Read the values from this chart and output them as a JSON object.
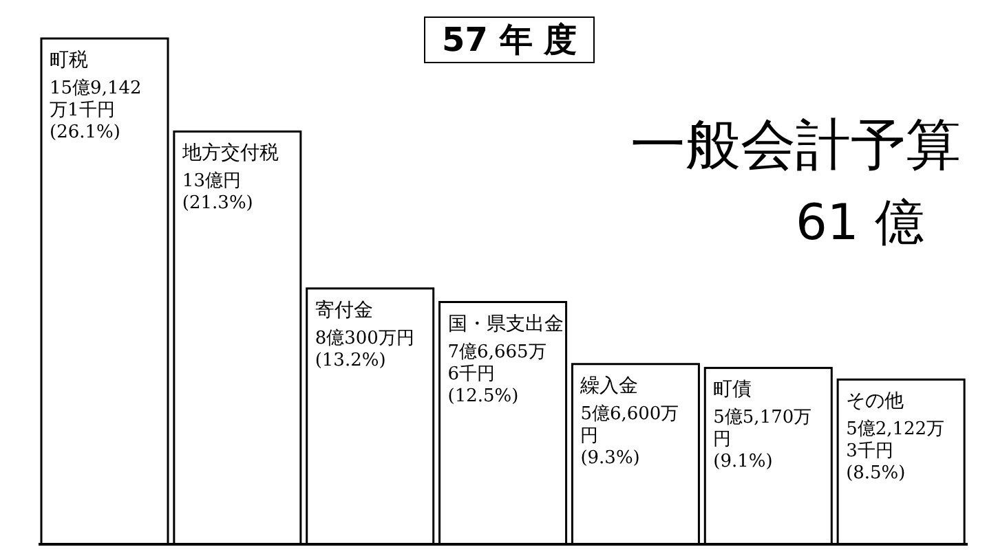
{
  "chart_data": {
    "type": "bar",
    "title": "57 年 度",
    "subtitle": "一般会計予算",
    "annotations": [
      "61 億"
    ],
    "categories": [
      "町税",
      "地方交付税",
      "寄付金",
      "国・県支出金",
      "繰入金",
      "町債",
      "その他"
    ],
    "values": [
      26.1,
      21.3,
      13.2,
      12.5,
      9.3,
      9.1,
      8.5
    ],
    "value_labels": [
      "15億9,142万1千円(26.1%)",
      "13億円(21.3%)",
      "8億300万円(13.2%)",
      "7億6,665万6千円(12.5%)",
      "5億6,600万円(9.3%)",
      "5億5,170万円(9.1%)",
      "5億2,122万3千円(8.5%)"
    ],
    "color": "#ffffff"
  }
}
